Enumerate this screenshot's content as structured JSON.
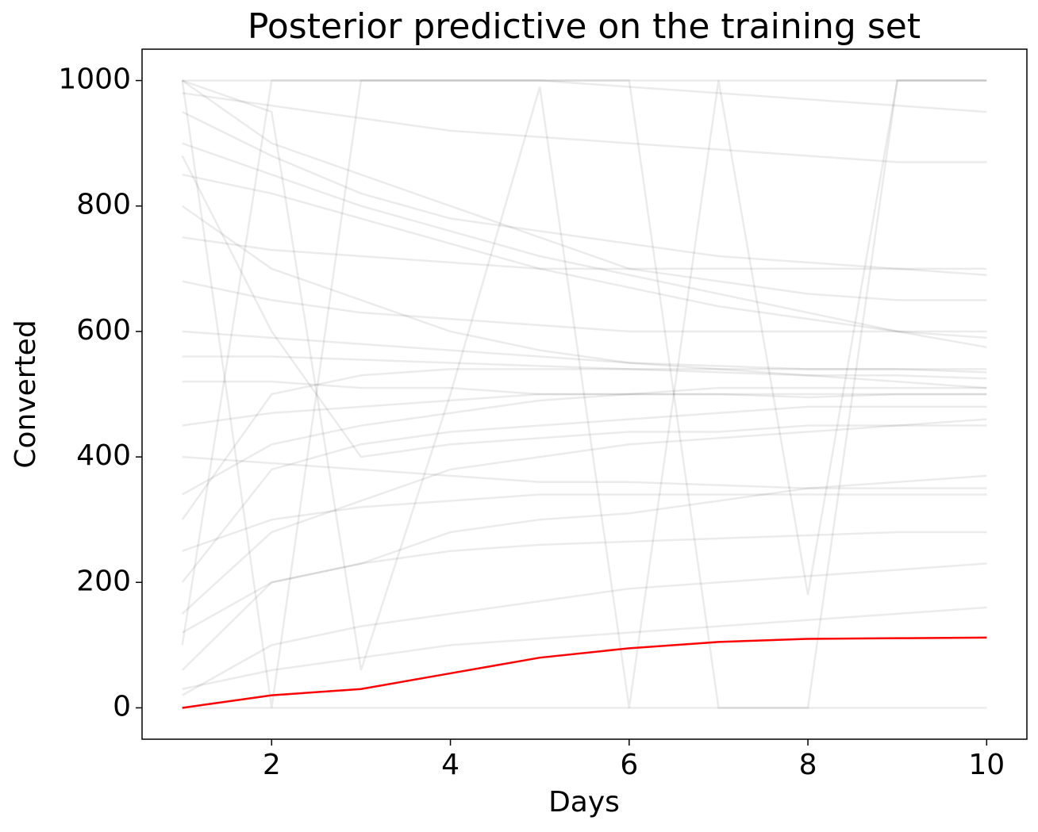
{
  "chart_data": {
    "type": "line",
    "title": "Posterior predictive on the training set",
    "x_label": "Days",
    "y_label": "Converted",
    "x": [
      1,
      2,
      3,
      4,
      5,
      6,
      7,
      8,
      9,
      10
    ],
    "xlim": [
      0.55,
      10.45
    ],
    "ylim": [
      -50,
      1050
    ],
    "xticks": [
      2,
      4,
      6,
      8,
      10
    ],
    "yticks": [
      0,
      200,
      400,
      600,
      800,
      1000
    ],
    "grid": false,
    "series": [
      {
        "color": "rgba(0,0,0,0.08)",
        "values": [
          1000,
          1000,
          1000,
          1000,
          1000,
          1000,
          1000,
          1000,
          1000,
          1000
        ]
      },
      {
        "color": "rgba(0,0,0,0.08)",
        "values": [
          0,
          0,
          0,
          0,
          0,
          0,
          0,
          0,
          0,
          0
        ]
      },
      {
        "color": "rgba(0,0,0,0.08)",
        "values": [
          1000,
          0,
          1000,
          1000,
          1000,
          1000,
          0,
          0,
          1000,
          1000
        ]
      },
      {
        "color": "rgba(0,0,0,0.08)",
        "values": [
          60,
          200,
          230,
          280,
          300,
          310,
          330,
          350,
          360,
          370
        ]
      },
      {
        "color": "rgba(0,0,0,0.08)",
        "values": [
          800,
          700,
          650,
          600,
          570,
          550,
          540,
          530,
          520,
          510
        ]
      },
      {
        "color": "rgba(0,0,0,0.08)",
        "values": [
          340,
          420,
          450,
          470,
          490,
          500,
          500,
          500,
          500,
          500
        ]
      },
      {
        "color": "rgba(0,0,0,0.08)",
        "values": [
          1000,
          900,
          850,
          800,
          750,
          700,
          680,
          660,
          650,
          650
        ]
      },
      {
        "color": "rgba(0,0,0,0.08)",
        "values": [
          520,
          520,
          510,
          510,
          500,
          500,
          500,
          495,
          500,
          500
        ]
      },
      {
        "color": "rgba(0,0,0,0.08)",
        "values": [
          150,
          280,
          330,
          380,
          400,
          420,
          430,
          440,
          450,
          460
        ]
      },
      {
        "color": "rgba(0,0,0,0.08)",
        "values": [
          900,
          850,
          800,
          760,
          720,
          690,
          660,
          630,
          600,
          575
        ]
      },
      {
        "color": "rgba(0,0,0,0.08)",
        "values": [
          30,
          60,
          80,
          100,
          110,
          120,
          130,
          140,
          150,
          160
        ]
      },
      {
        "color": "rgba(0,0,0,0.08)",
        "values": [
          250,
          300,
          320,
          330,
          340,
          340,
          340,
          340,
          340,
          340
        ]
      },
      {
        "color": "rgba(0,0,0,0.08)",
        "values": [
          680,
          650,
          630,
          620,
          610,
          600,
          600,
          600,
          600,
          600
        ]
      },
      {
        "color": "rgba(0,0,0,0.08)",
        "values": [
          100,
          1000,
          1000,
          1000,
          1000,
          990,
          980,
          970,
          960,
          950
        ]
      },
      {
        "color": "rgba(0,0,0,0.08)",
        "values": [
          450,
          470,
          480,
          490,
          500,
          500,
          510,
          510,
          510,
          510
        ]
      },
      {
        "color": "rgba(0,0,0,0.08)",
        "values": [
          980,
          960,
          940,
          920,
          910,
          900,
          890,
          880,
          870,
          870
        ]
      },
      {
        "color": "rgba(0,0,0,0.08)",
        "values": [
          200,
          380,
          420,
          440,
          450,
          460,
          470,
          480,
          480,
          480
        ]
      },
      {
        "color": "rgba(0,0,0,0.08)",
        "values": [
          600,
          590,
          580,
          570,
          560,
          550,
          545,
          540,
          540,
          535
        ]
      },
      {
        "color": "rgba(0,0,0,0.08)",
        "values": [
          20,
          100,
          130,
          150,
          170,
          190,
          200,
          210,
          220,
          230
        ]
      },
      {
        "color": "rgba(0,0,0,0.08)",
        "values": [
          1000,
          950,
          60,
          500,
          990,
          0,
          1000,
          180,
          1000,
          1000
        ]
      },
      {
        "color": "rgba(0,0,0,0.08)",
        "values": [
          750,
          730,
          720,
          710,
          700,
          700,
          700,
          700,
          700,
          700
        ]
      },
      {
        "color": "rgba(0,0,0,0.08)",
        "values": [
          400,
          390,
          380,
          370,
          360,
          360,
          355,
          350,
          350,
          350
        ]
      },
      {
        "color": "rgba(0,0,0,0.08)",
        "values": [
          850,
          820,
          780,
          740,
          700,
          670,
          640,
          620,
          600,
          590
        ]
      },
      {
        "color": "rgba(0,0,0,0.08)",
        "values": [
          300,
          500,
          530,
          540,
          540,
          540,
          540,
          540,
          540,
          540
        ]
      },
      {
        "color": "rgba(0,0,0,0.08)",
        "values": [
          950,
          880,
          820,
          780,
          760,
          740,
          720,
          710,
          700,
          690
        ]
      },
      {
        "color": "rgba(0,0,0,0.08)",
        "values": [
          120,
          200,
          230,
          250,
          260,
          265,
          270,
          275,
          280,
          280
        ]
      },
      {
        "color": "rgba(0,0,0,0.08)",
        "values": [
          560,
          560,
          555,
          550,
          545,
          540,
          535,
          530,
          530,
          525
        ]
      },
      {
        "color": "rgba(0,0,0,0.08)",
        "values": [
          880,
          600,
          400,
          420,
          430,
          440,
          440,
          450,
          450,
          450
        ]
      },
      {
        "color": "#ff0000",
        "values": [
          0,
          20,
          30,
          55,
          80,
          95,
          105,
          110,
          111,
          112
        ]
      }
    ]
  }
}
